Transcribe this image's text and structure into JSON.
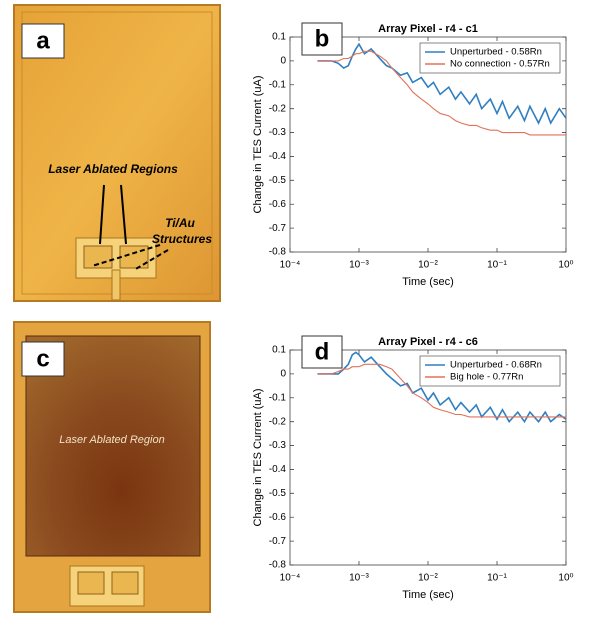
{
  "photos": [
    {
      "panel_label": "a",
      "annotations": [
        "Laser Ablated Regions",
        "Ti/Au",
        "Structures"
      ]
    },
    {
      "panel_label": "c",
      "annotations": [
        "Laser Ablated Region"
      ]
    }
  ],
  "chart_data": [
    {
      "type": "line",
      "panel_label": "b",
      "title": "Array Pixel - r4 - c1",
      "xlabel": "Time (sec)",
      "ylabel": "Change in TES Current (uA)",
      "xscale": "log",
      "legend": "upper right",
      "xlim": [
        0.0001,
        1
      ],
      "xticks": [
        {
          "value": 0.0001,
          "label": "10⁻⁴"
        },
        {
          "value": 0.001,
          "label": "10⁻³"
        },
        {
          "value": 0.01,
          "label": "10⁻²"
        },
        {
          "value": 0.1,
          "label": "10⁻¹"
        },
        {
          "value": 1,
          "label": "10⁰"
        }
      ],
      "ylim": [
        -0.8,
        0.1
      ],
      "yticks": [
        0.1,
        0,
        -0.1,
        -0.2,
        -0.3,
        -0.4,
        -0.5,
        -0.6,
        -0.7,
        -0.8
      ],
      "x": [
        0.00025,
        0.0004,
        0.0005,
        0.0006,
        0.0007,
        0.0008,
        0.0009,
        0.001,
        0.0012,
        0.0015,
        0.002,
        0.0025,
        0.003,
        0.004,
        0.005,
        0.006,
        0.008,
        0.01,
        0.012,
        0.015,
        0.02,
        0.025,
        0.03,
        0.04,
        0.05,
        0.06,
        0.08,
        0.1,
        0.12,
        0.15,
        0.2,
        0.25,
        0.3,
        0.4,
        0.5,
        0.6,
        0.8,
        1
      ],
      "series": [
        {
          "name": "Unperturbed - 0.58Rn",
          "color": "#2f7fc1",
          "values": [
            0,
            0,
            -0.01,
            -0.03,
            -0.02,
            0.02,
            0.05,
            0.07,
            0.03,
            0.05,
            0.01,
            -0.02,
            -0.03,
            -0.06,
            -0.05,
            -0.09,
            -0.07,
            -0.11,
            -0.09,
            -0.14,
            -0.11,
            -0.16,
            -0.13,
            -0.18,
            -0.14,
            -0.2,
            -0.16,
            -0.22,
            -0.17,
            -0.24,
            -0.19,
            -0.25,
            -0.19,
            -0.26,
            -0.2,
            -0.26,
            -0.2,
            -0.24
          ]
        },
        {
          "name": "No connection - 0.57Rn",
          "color": "#e2725a",
          "values": [
            0,
            0,
            0,
            0.01,
            0.01,
            0.02,
            0.03,
            0.03,
            0.04,
            0.04,
            0.02,
            0,
            -0.03,
            -0.07,
            -0.1,
            -0.13,
            -0.16,
            -0.18,
            -0.2,
            -0.22,
            -0.23,
            -0.25,
            -0.26,
            -0.27,
            -0.27,
            -0.28,
            -0.29,
            -0.29,
            -0.3,
            -0.3,
            -0.3,
            -0.3,
            -0.31,
            -0.31,
            -0.31,
            -0.31,
            -0.31,
            -0.31
          ]
        }
      ]
    },
    {
      "type": "line",
      "panel_label": "d",
      "title": "Array Pixel - r4 - c6",
      "xlabel": "Time (sec)",
      "ylabel": "Change in TES Current (uA)",
      "xscale": "log",
      "legend": "upper right",
      "xlim": [
        0.0001,
        1
      ],
      "xticks": [
        {
          "value": 0.0001,
          "label": "10⁻⁴"
        },
        {
          "value": 0.001,
          "label": "10⁻³"
        },
        {
          "value": 0.01,
          "label": "10⁻²"
        },
        {
          "value": 0.1,
          "label": "10⁻¹"
        },
        {
          "value": 1,
          "label": "10⁰"
        }
      ],
      "ylim": [
        -0.8,
        0.1
      ],
      "yticks": [
        0.1,
        0,
        -0.1,
        -0.2,
        -0.3,
        -0.4,
        -0.5,
        -0.6,
        -0.7,
        -0.8
      ],
      "x": [
        0.00025,
        0.0004,
        0.0005,
        0.0006,
        0.0007,
        0.0008,
        0.0009,
        0.001,
        0.0012,
        0.0015,
        0.002,
        0.0025,
        0.003,
        0.004,
        0.005,
        0.006,
        0.008,
        0.01,
        0.012,
        0.015,
        0.02,
        0.025,
        0.03,
        0.04,
        0.05,
        0.06,
        0.08,
        0.1,
        0.12,
        0.15,
        0.2,
        0.25,
        0.3,
        0.4,
        0.5,
        0.6,
        0.8,
        1
      ],
      "series": [
        {
          "name": "Unperturbed - 0.68Rn",
          "color": "#2f7fc1",
          "values": [
            0,
            0,
            0,
            0.02,
            0.04,
            0.08,
            0.09,
            0.08,
            0.05,
            0.07,
            0.03,
            0,
            -0.02,
            -0.05,
            -0.04,
            -0.08,
            -0.06,
            -0.11,
            -0.08,
            -0.13,
            -0.1,
            -0.15,
            -0.12,
            -0.16,
            -0.13,
            -0.18,
            -0.14,
            -0.19,
            -0.15,
            -0.2,
            -0.16,
            -0.2,
            -0.16,
            -0.2,
            -0.16,
            -0.2,
            -0.17,
            -0.19
          ]
        },
        {
          "name": "Big hole - 0.77Rn",
          "color": "#e2725a",
          "values": [
            0,
            0,
            0.01,
            0.02,
            0.02,
            0.03,
            0.03,
            0.03,
            0.04,
            0.04,
            0.04,
            0.03,
            0.02,
            -0.02,
            -0.05,
            -0.08,
            -0.1,
            -0.12,
            -0.14,
            -0.15,
            -0.16,
            -0.17,
            -0.17,
            -0.18,
            -0.18,
            -0.18,
            -0.18,
            -0.18,
            -0.18,
            -0.18,
            -0.18,
            -0.18,
            -0.18,
            -0.18,
            -0.18,
            -0.18,
            -0.18,
            -0.18
          ]
        }
      ]
    }
  ]
}
